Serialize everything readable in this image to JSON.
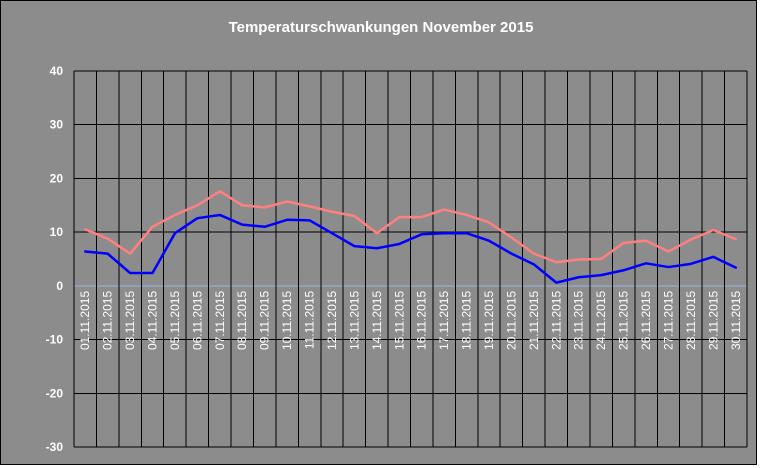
{
  "chart_data": {
    "type": "line",
    "title": "Temperaturschwankungen November 2015",
    "xlabel": "",
    "ylabel": "",
    "ylim": [
      -30,
      40
    ],
    "yticks": [
      40,
      30,
      20,
      10,
      0,
      -10,
      -20,
      -30
    ],
    "grid": true,
    "legend": "none",
    "categories": [
      "01.11.2015",
      "02.11.2015",
      "03.11.2015",
      "04.11.2015",
      "05.11.2015",
      "06.11.2015",
      "07.11.2015",
      "08.11.2015",
      "09.11.2015",
      "10.11.2015",
      "11.11.2015",
      "12.11.2015",
      "13.11.2015",
      "14.11.2015",
      "15.11.2015",
      "16.11.2015",
      "17.11.2015",
      "18.11.2015",
      "19.11.2015",
      "20.11.2015",
      "21.11.2015",
      "22.11.2015",
      "23.11.2015",
      "24.11.2015",
      "25.11.2015",
      "26.11.2015",
      "27.11.2015",
      "28.11.2015",
      "29.11.2015",
      "30.11.2015"
    ],
    "series": [
      {
        "color": "#ff8080",
        "values": [
          10.5,
          8.8,
          6.0,
          11.0,
          13.2,
          15.0,
          17.6,
          15.0,
          14.6,
          15.7,
          14.8,
          13.8,
          13.0,
          9.8,
          12.8,
          12.8,
          14.2,
          13.2,
          11.8,
          9.0,
          6.0,
          4.4,
          4.9,
          5.0,
          8.0,
          8.4,
          6.4,
          8.6,
          10.4,
          8.7
        ]
      },
      {
        "color": "#0000ff",
        "values": [
          6.4,
          6.0,
          2.4,
          2.4,
          9.8,
          12.6,
          13.2,
          11.4,
          11.0,
          12.3,
          12.2,
          9.8,
          7.4,
          7.0,
          7.8,
          9.6,
          9.8,
          9.8,
          8.4,
          6.0,
          4.0,
          0.6,
          1.6,
          2.0,
          2.9,
          4.2,
          3.5,
          4.1,
          5.4,
          3.4
        ]
      }
    ]
  },
  "colors": {
    "background": "#8c8c8c",
    "grid": "#000000",
    "zero_line": "#9db3e0",
    "text": "#ffffff"
  }
}
